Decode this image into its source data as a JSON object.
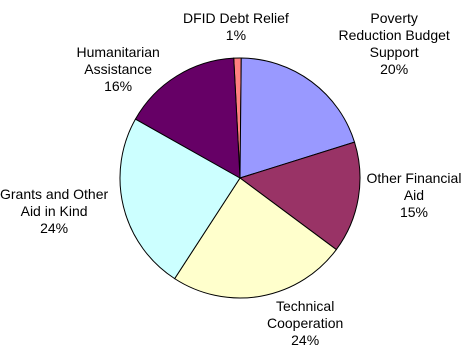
{
  "chart_data": {
    "type": "pie",
    "title": "",
    "slices": [
      {
        "name": "DFID Debt Relief",
        "label_lines": [
          "DFID Debt Relief"
        ],
        "value": 1,
        "percent_label": "1%",
        "color": "#FF8080"
      },
      {
        "name": "Poverty Reduction Budget Support",
        "label_lines": [
          "Poverty",
          "Reduction Budget",
          "Support"
        ],
        "value": 20,
        "percent_label": "20%",
        "color": "#9999FF"
      },
      {
        "name": "Other Financial Aid",
        "label_lines": [
          "Other Financial",
          "Aid"
        ],
        "value": 15,
        "percent_label": "15%",
        "color": "#993366"
      },
      {
        "name": "Technical Cooperation",
        "label_lines": [
          "Technical",
          "Cooperation"
        ],
        "value": 24,
        "percent_label": "24%",
        "color": "#FFFFCC"
      },
      {
        "name": "Grants and Other Aid in Kind",
        "label_lines": [
          "Grants and Other",
          "Aid in Kind"
        ],
        "value": 24,
        "percent_label": "24%",
        "color": "#CCFFFF"
      },
      {
        "name": "Humanitarian Assistance",
        "label_lines": [
          "Humanitarian",
          "Assistance"
        ],
        "value": 16,
        "percent_label": "16%",
        "color": "#660066"
      }
    ]
  }
}
